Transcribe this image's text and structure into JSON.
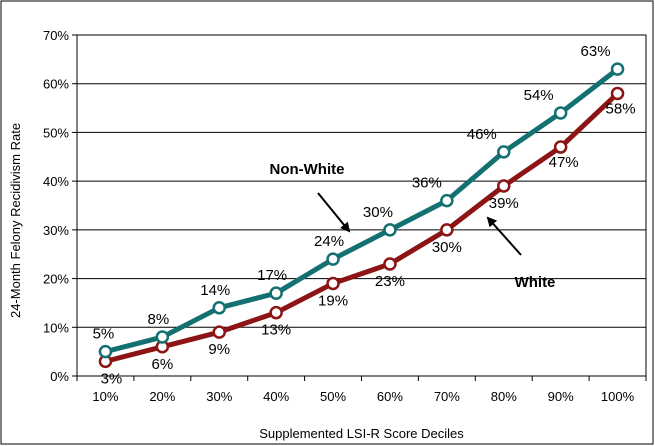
{
  "chart_data": {
    "type": "line",
    "categories": [
      "10%",
      "20%",
      "30%",
      "40%",
      "50%",
      "60%",
      "70%",
      "80%",
      "90%",
      "100%"
    ],
    "series": [
      {
        "name": "Non-White",
        "color": "#137171",
        "values": [
          5,
          8,
          14,
          17,
          24,
          30,
          36,
          46,
          54,
          63
        ],
        "labels": [
          "5%",
          "8%",
          "14%",
          "17%",
          "24%",
          "30%",
          "36%",
          "46%",
          "54%",
          "63%"
        ]
      },
      {
        "name": "White",
        "color": "#8c1414",
        "values": [
          3,
          6,
          9,
          13,
          19,
          23,
          30,
          39,
          47,
          58
        ],
        "labels": [
          "3%",
          "6%",
          "9%",
          "13%",
          "19%",
          "23%",
          "30%",
          "39%",
          "47%",
          "58%"
        ]
      }
    ],
    "title": "",
    "xlabel": "Supplemented LSI-R Score Deciles",
    "ylabel": "24-Month Felony Recidivism Rate",
    "ylim": [
      0,
      70
    ],
    "yticks": [
      "0%",
      "10%",
      "20%",
      "30%",
      "40%",
      "50%",
      "60%",
      "70%"
    ],
    "grid": true,
    "legend": "none"
  }
}
